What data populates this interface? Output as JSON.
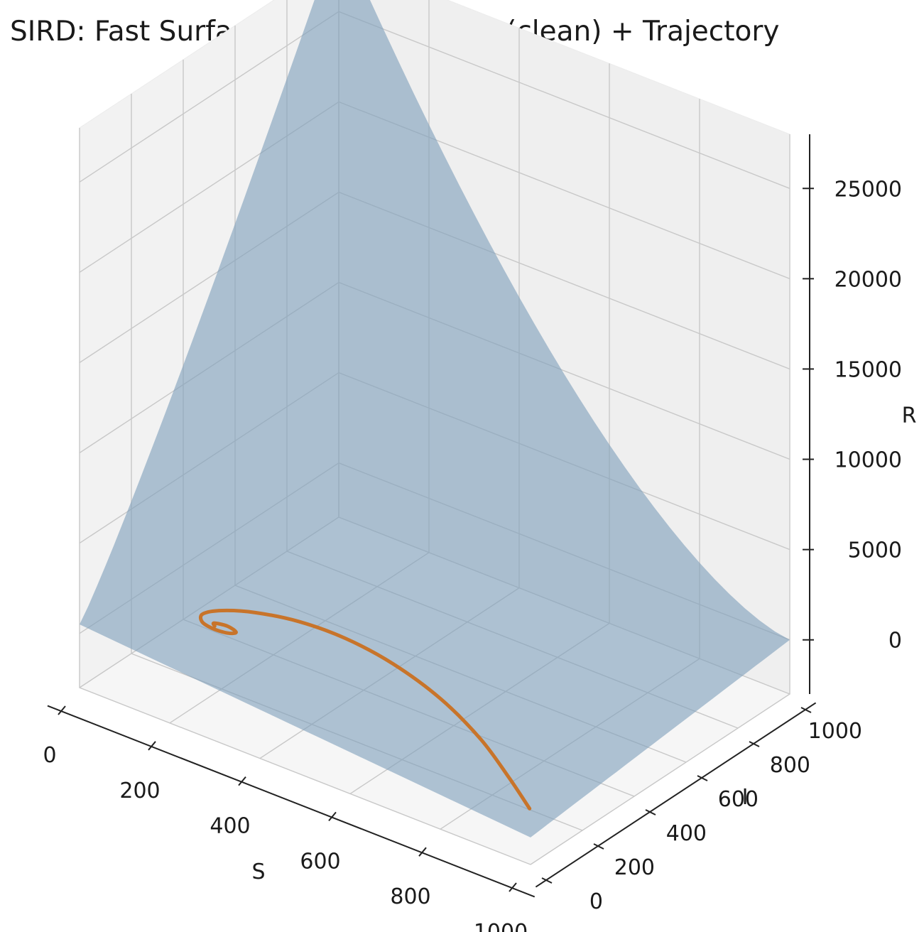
{
  "chart_data": {
    "type": "surface3d",
    "title": "SIRD: Fast Surface + Slow Manifold (clean) + Trajectory",
    "xlabel": "S",
    "ylabel": "I",
    "zlabel": "R",
    "xlim": [
      0,
      1000
    ],
    "ylim": [
      0,
      1000
    ],
    "zlim": [
      -3000,
      28000
    ],
    "x_ticks": [
      0,
      200,
      400,
      600,
      800,
      1000
    ],
    "y_ticks": [
      0,
      200,
      400,
      600,
      800,
      1000
    ],
    "z_ticks": [
      0,
      5000,
      10000,
      15000,
      20000,
      25000
    ],
    "grid": true,
    "colors": {
      "surface": "#7f9fbc",
      "trajectory": "#c8742a",
      "pane": "#f2f2f2",
      "grid": "#c8c8c8"
    },
    "surface": {
      "description_values": "R = R_min + (R_max - R_min) * ((1000 - S)/1000)^1.6 * (I/1000)^1.1",
      "corner_values": [
        {
          "S": 0,
          "I": 0,
          "R": 500
        },
        {
          "S": 1000,
          "I": 0,
          "R": -1500
        },
        {
          "S": 1000,
          "I": 1000,
          "R": 0
        },
        {
          "S": 0,
          "I": 1000,
          "R": 27500
        }
      ]
    },
    "trajectory": [
      {
        "S": 995,
        "I": 5,
        "R": 0
      },
      {
        "S": 900,
        "I": 90,
        "R": 0
      },
      {
        "S": 780,
        "I": 190,
        "R": 0
      },
      {
        "S": 640,
        "I": 280,
        "R": 0
      },
      {
        "S": 500,
        "I": 340,
        "R": 0
      },
      {
        "S": 380,
        "I": 365,
        "R": 0
      },
      {
        "S": 280,
        "I": 360,
        "R": 0
      },
      {
        "S": 200,
        "I": 330,
        "R": 0
      },
      {
        "S": 150,
        "I": 290,
        "R": 0
      },
      {
        "S": 130,
        "I": 250,
        "R": 0
      },
      {
        "S": 145,
        "I": 220,
        "R": 0
      },
      {
        "S": 175,
        "I": 210,
        "R": 0
      },
      {
        "S": 205,
        "I": 215,
        "R": 0
      },
      {
        "S": 215,
        "I": 230,
        "R": 0
      },
      {
        "S": 190,
        "I": 240,
        "R": 0
      },
      {
        "S": 165,
        "I": 232,
        "R": 0
      },
      {
        "S": 172,
        "I": 222,
        "R": 0
      }
    ]
  }
}
